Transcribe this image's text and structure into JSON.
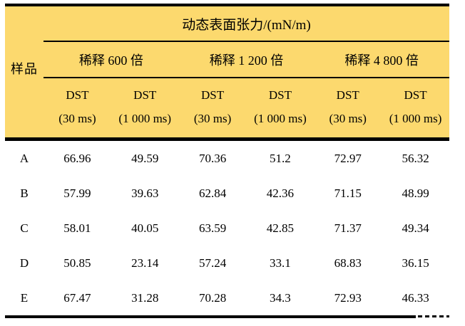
{
  "table": {
    "corner_header": "样品",
    "main_header": "动态表面张力/(mN/m)",
    "group_headers": [
      "稀释 600 倍",
      "稀释 1 200 倍",
      "稀释 4 800 倍"
    ],
    "sub_headers": [
      {
        "name": "DST",
        "condition": "(30 ms)"
      },
      {
        "name": "DST",
        "condition": "(1 000 ms)"
      },
      {
        "name": "DST",
        "condition": "(30 ms)"
      },
      {
        "name": "DST",
        "condition": "(1 000 ms)"
      },
      {
        "name": "DST",
        "condition": "(30 ms)"
      },
      {
        "name": "DST",
        "condition": "(1 000 ms)"
      }
    ],
    "rows": [
      {
        "sample": "A",
        "values": [
          "66.96",
          "49.59",
          "70.36",
          "51.2",
          "72.97",
          "56.32"
        ]
      },
      {
        "sample": "B",
        "values": [
          "57.99",
          "39.63",
          "62.84",
          "42.36",
          "71.15",
          "48.99"
        ]
      },
      {
        "sample": "C",
        "values": [
          "58.01",
          "40.05",
          "63.59",
          "42.85",
          "71.37",
          "49.34"
        ]
      },
      {
        "sample": "D",
        "values": [
          "50.85",
          "23.14",
          "57.24",
          "33.1",
          "68.83",
          "36.15"
        ]
      },
      {
        "sample": "E",
        "values": [
          "67.47",
          "31.28",
          "70.28",
          "34.3",
          "72.93",
          "46.33"
        ]
      }
    ]
  },
  "colors": {
    "header_background": "#fcd96e",
    "rule": "#000000",
    "text": "#000000",
    "page_background": "#ffffff"
  }
}
